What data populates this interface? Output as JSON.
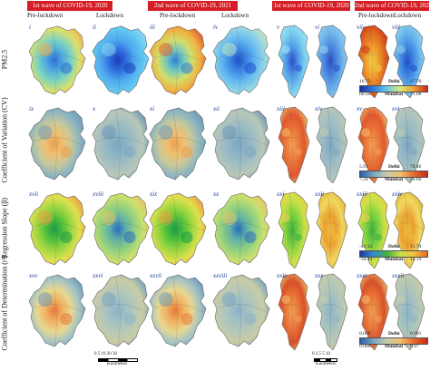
{
  "banners": [
    {
      "text": "1st wave of COVID-19, 2020",
      "x": 0,
      "w": 0
    },
    {
      "text": "2nd wave of COVID-19, 2021"
    },
    {
      "text": "1st wave of COVID-19, 2020"
    },
    {
      "text": "2nd wave of COVID-19, 2021"
    }
  ],
  "columns": [
    "Pre-lockdown",
    "Lockdown",
    "Pre-lockdown",
    "Lockdown",
    "Pre-lockdown",
    "Lockdown"
  ],
  "rows": [
    "PM2.5",
    "Coefficient of Variation (CV)",
    "Regression Slope (β)",
    "Coefficient of Determination (r²)"
  ],
  "panel_numerals": [
    [
      "i",
      "ii",
      "iii",
      "iv",
      "v",
      "vi",
      "vii",
      "viii"
    ],
    [
      "ix",
      "x",
      "xi",
      "xii",
      "xiii",
      "xiv",
      "xv",
      "xvi"
    ],
    [
      "xvii",
      "xviii",
      "xix",
      "xx",
      "xxi",
      "xxii",
      "xxiii",
      "xxiv"
    ],
    [
      "xxv",
      "xxvi",
      "xxvii",
      "xxviii",
      "xxix",
      "xxx",
      "xxxi",
      "xxxii"
    ]
  ],
  "colorbars": [
    {
      "delhi_min": "16.73",
      "delhi_max": "17.76",
      "mumbai_min": "66.95",
      "mumbai_max": "71.08",
      "delhi_label": "Delhi",
      "mumbai_label": "Mumbai"
    },
    {
      "delhi_min": "5.91",
      "delhi_max": "78.46",
      "mumbai_min": "7.24",
      "mumbai_max": "56.66",
      "delhi_label": "Delhi",
      "mumbai_label": "Mumbai"
    },
    {
      "delhi_min": "-41.12",
      "delhi_max": "21.74",
      "mumbai_min": "-34.83",
      "mumbai_max": "12.19",
      "delhi_label": "Delhi",
      "mumbai_label": "Mumbai"
    },
    {
      "delhi_min": "0.000",
      "delhi_max": "0.991",
      "mumbai_min": "0.000",
      "mumbai_max": "0.97",
      "delhi_label": "Delhi",
      "mumbai_label": "Mumbai"
    }
  ],
  "scale_delhi": {
    "ticks": "0  5  10     20       30",
    "unit": "Kilometers"
  },
  "scale_mumbai": {
    "ticks": "0 2.5 5   10",
    "unit": "Kilometers"
  },
  "colors": {
    "banner": "#d41f26",
    "numeral": "#1a3a9a"
  }
}
